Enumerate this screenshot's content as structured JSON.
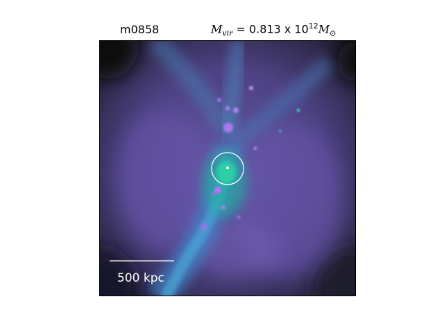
{
  "header": {
    "halo_id": "m0858",
    "mass_label_prefix": "M",
    "mass_label_sub": "vir",
    "mass_value": "= 0.813 x 10",
    "mass_exp": "12",
    "mass_unit": "M",
    "mass_unit_sub": "⊙"
  },
  "image": {
    "scale_bar_label": "500 kpc",
    "colors": {
      "background_deep": "#2a223e",
      "purple": "#6a5aa8",
      "blue_filament": "#4a86c8",
      "teal_core": "#22c8a0",
      "clump": "#b07ae8"
    }
  }
}
